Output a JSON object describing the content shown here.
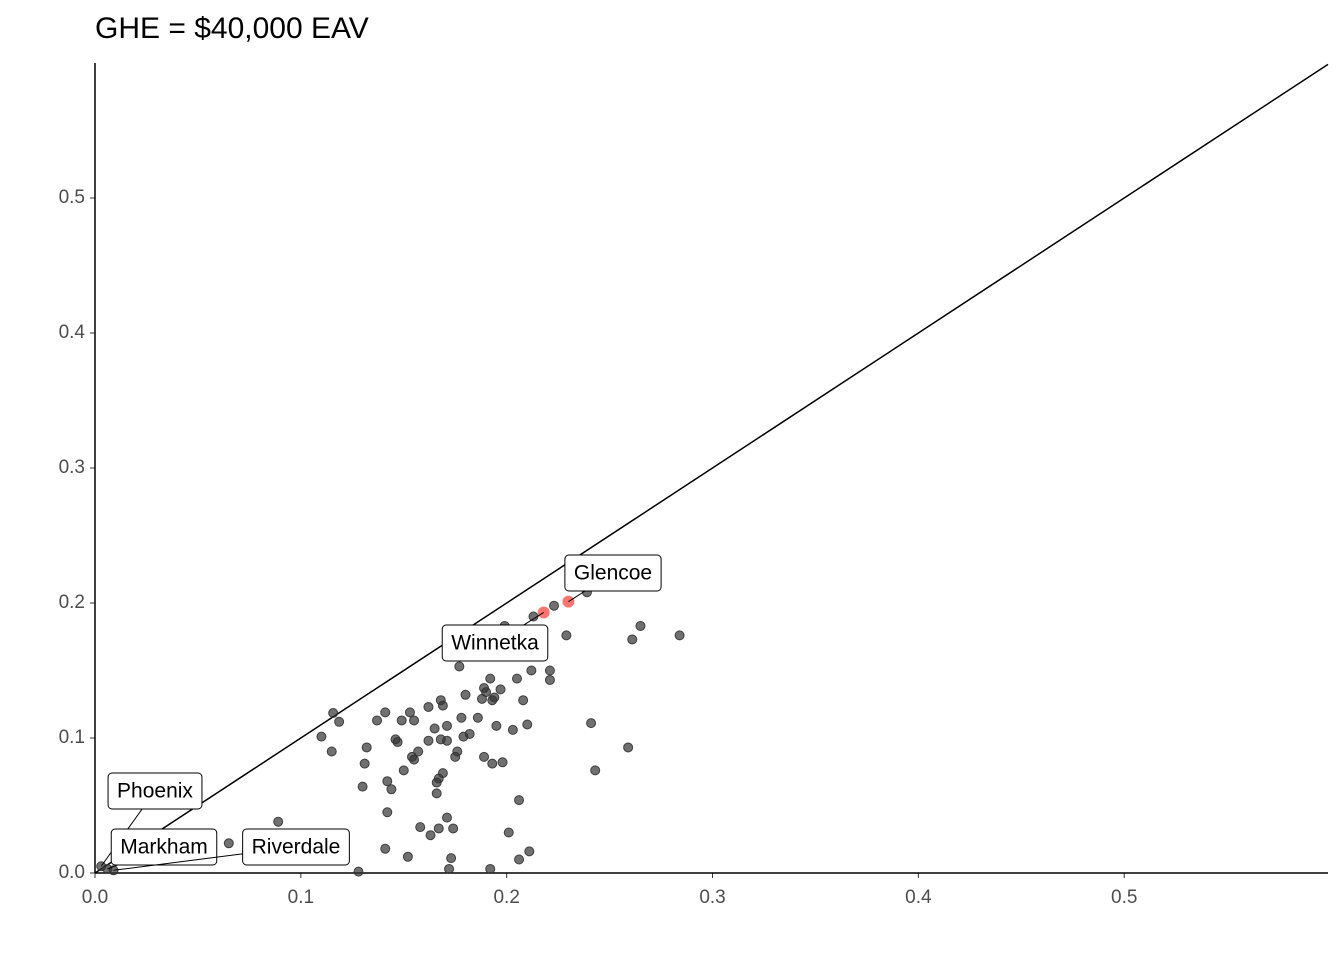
{
  "chart_data": {
    "type": "scatter",
    "title": "GHE = $40,000 EAV",
    "xlim": [
      0,
      0.599
    ],
    "ylim": [
      0,
      0.6
    ],
    "xticks": [
      {
        "value": 0,
        "label": "0.0"
      },
      0.1,
      0.2,
      0.3,
      0.4,
      0.5
    ],
    "yticks": [
      {
        "value": 0,
        "label": "0.0"
      },
      0.1,
      0.2,
      0.3,
      0.4,
      0.5
    ],
    "reference_line": {
      "slope": 1,
      "intercept": 0
    },
    "series": [
      {
        "color": "#333333",
        "x": [
          0.1157,
          0.1186,
          0.11,
          0.115,
          0.141,
          0.137,
          0.132,
          0.131,
          0.13,
          0.142,
          0.144,
          0.142,
          0.146,
          0.147,
          0.149,
          0.153,
          0.155,
          0.154,
          0.155,
          0.15,
          0.157,
          0.162,
          0.168,
          0.169,
          0.165,
          0.162,
          0.171,
          0.168,
          0.171,
          0.167,
          0.169,
          0.166,
          0.166,
          0.158,
          0.163,
          0.167,
          0.171,
          0.174,
          0.173,
          0.172,
          0.152,
          0.141,
          0.128,
          0.177,
          0.18,
          0.178,
          0.179,
          0.176,
          0.175,
          0.182,
          0.186,
          0.189,
          0.19,
          0.192,
          0.188,
          0.193,
          0.194,
          0.197,
          0.195,
          0.189,
          0.193,
          0.198,
          0.199,
          0.205,
          0.203,
          0.21,
          0.208,
          0.212,
          0.221,
          0.221,
          0.206,
          0.201,
          0.206,
          0.211,
          0.192,
          0.213,
          0.223,
          0.229,
          0.239,
          0.261,
          0.265,
          0.284,
          0.241,
          0.259,
          0.243,
          0.089,
          0.065
        ],
        "values": [
          0.1185,
          0.112,
          0.101,
          0.09,
          0.119,
          0.113,
          0.093,
          0.081,
          0.064,
          0.068,
          0.062,
          0.045,
          0.099,
          0.097,
          0.113,
          0.119,
          0.113,
          0.086,
          0.084,
          0.076,
          0.09,
          0.123,
          0.128,
          0.124,
          0.107,
          0.098,
          0.109,
          0.099,
          0.098,
          0.07,
          0.074,
          0.067,
          0.059,
          0.034,
          0.028,
          0.033,
          0.041,
          0.033,
          0.011,
          0.003,
          0.012,
          0.018,
          0.001,
          0.153,
          0.132,
          0.115,
          0.101,
          0.09,
          0.086,
          0.103,
          0.115,
          0.137,
          0.134,
          0.144,
          0.129,
          0.128,
          0.13,
          0.136,
          0.109,
          0.086,
          0.081,
          0.082,
          0.183,
          0.144,
          0.106,
          0.11,
          0.128,
          0.15,
          0.15,
          0.143,
          0.054,
          0.03,
          0.01,
          0.016,
          0.003,
          0.19,
          0.198,
          0.176,
          0.208,
          0.173,
          0.183,
          0.176,
          0.111,
          0.093,
          0.076,
          0.038,
          0.022
        ]
      },
      {
        "color": "#333333",
        "x": [
          0.003,
          0.006,
          0.009
        ],
        "values": [
          0.005,
          0.003,
          0.002
        ],
        "labels": [
          "Phoenix",
          "Markham",
          "Riverdale"
        ]
      },
      {
        "color": "#f8766d",
        "x": [
          0.218,
          0.23
        ],
        "values": [
          0.193,
          0.201
        ],
        "labels": [
          "Winnetka",
          "Glencoe"
        ]
      }
    ]
  }
}
